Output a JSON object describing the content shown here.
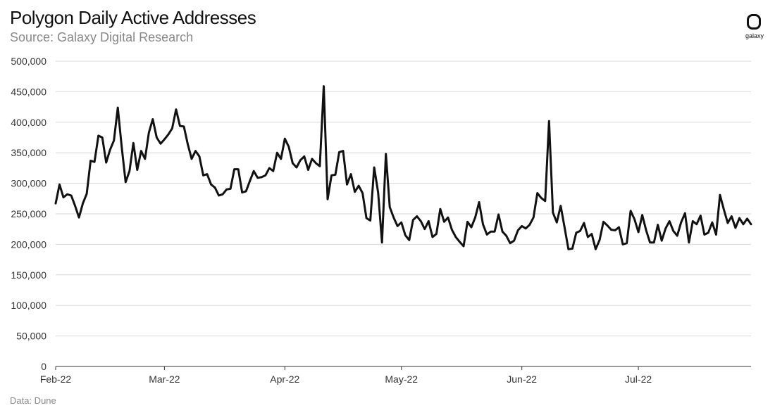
{
  "header": {
    "title": "Polygon Daily Active Addresses",
    "subtitle": "Source: Galaxy Digital Research"
  },
  "logo": {
    "text": "galaxy",
    "icon": "galaxy-logo-icon"
  },
  "footer": {
    "source": "Data: Dune"
  },
  "colors": {
    "line": "#111111",
    "grid": "#d9d9d9",
    "axis": "#333333"
  },
  "chart_data": {
    "type": "line",
    "title": "Polygon Daily Active Addresses",
    "subtitle": "Source: Galaxy Digital Research",
    "xlabel": "",
    "ylabel": "",
    "ylim": [
      0,
      500000
    ],
    "grid": true,
    "y_ticks": [
      0,
      50000,
      100000,
      150000,
      200000,
      250000,
      300000,
      350000,
      400000,
      450000,
      500000
    ],
    "y_tick_labels": [
      "0",
      "50,000",
      "100,000",
      "150,000",
      "200,000",
      "250,000",
      "300,000",
      "350,000",
      "400,000",
      "450,000",
      "500,000"
    ],
    "x_tick_labels": [
      "Feb-22",
      "Mar-22",
      "Apr-22",
      "May-22",
      "Jun-22",
      "Jul-22"
    ],
    "x_tick_dates": [
      "2022-02-01",
      "2022-03-01",
      "2022-04-01",
      "2022-05-01",
      "2022-06-01",
      "2022-07-01"
    ],
    "x_start": "2022-02-01",
    "x_end": "2022-07-30",
    "series": [
      {
        "values": [
          267000,
          298000,
          277000,
          282000,
          280000,
          263000,
          244000,
          267000,
          283000,
          337000,
          335000,
          378000,
          375000,
          334000,
          355000,
          370000,
          424000,
          360000,
          302000,
          320000,
          366000,
          322000,
          353000,
          340000,
          383000,
          405000,
          375000,
          365000,
          372000,
          380000,
          390000,
          421000,
          394000,
          393000,
          364000,
          340000,
          353000,
          344000,
          313000,
          315000,
          298000,
          293000,
          280000,
          282000,
          290000,
          291000,
          323000,
          323000,
          285000,
          287000,
          304000,
          320000,
          309000,
          310000,
          313000,
          325000,
          320000,
          350000,
          340000,
          373000,
          360000,
          333000,
          326000,
          338000,
          344000,
          322000,
          340000,
          333000,
          328000,
          459000,
          274000,
          313000,
          314000,
          351000,
          353000,
          298000,
          315000,
          286000,
          296000,
          284000,
          243000,
          239000,
          326000,
          285000,
          203000,
          348000,
          261000,
          244000,
          230000,
          236000,
          215000,
          207000,
          240000,
          246000,
          238000,
          225000,
          238000,
          212000,
          217000,
          258000,
          237000,
          244000,
          224000,
          212000,
          204000,
          197000,
          237000,
          228000,
          244000,
          269000,
          233000,
          216000,
          221000,
          221000,
          249000,
          221000,
          214000,
          202000,
          206000,
          223000,
          230000,
          226000,
          232000,
          244000,
          284000,
          276000,
          271000,
          402000,
          252000,
          236000,
          263000,
          228000,
          192000,
          193000,
          219000,
          222000,
          235000,
          212000,
          217000,
          192000,
          207000,
          237000,
          231000,
          224000,
          223000,
          228000,
          200000,
          202000,
          255000,
          241000,
          220000,
          248000,
          223000,
          203000,
          203000,
          232000,
          206000,
          226000,
          238000,
          222000,
          214000,
          236000,
          251000,
          203000,
          238000,
          233000,
          247000,
          216000,
          219000,
          236000,
          216000,
          281000,
          257000,
          235000,
          246000,
          227000,
          243000,
          233000,
          242000,
          233000
        ]
      }
    ]
  }
}
